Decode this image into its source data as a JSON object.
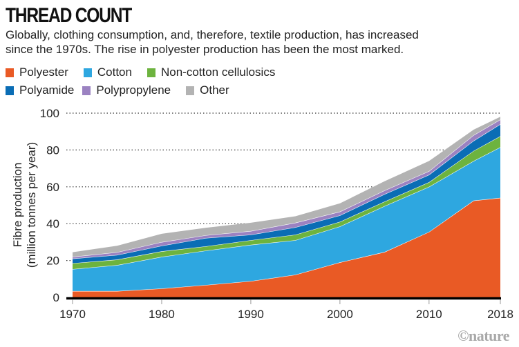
{
  "header": {
    "title": "THREAD COUNT",
    "subtitle_line1": "Globally, clothing consumption, and, therefore, textile production, has increased",
    "subtitle_line2": "since the 1970s. The rise in polyester production has been the most marked."
  },
  "credit": "©nature",
  "chart_data": {
    "type": "area",
    "stacked": true,
    "title": "THREAD COUNT",
    "xlabel": "",
    "ylabel": "Fibre production",
    "ylabel_sub": "(million tonnes per year)",
    "x": [
      1970,
      1975,
      1980,
      1985,
      1990,
      1995,
      2000,
      2005,
      2010,
      2015,
      2018
    ],
    "xlim": [
      1970,
      2018
    ],
    "ylim": [
      0,
      100
    ],
    "x_ticks": [
      "1970",
      "1980",
      "1990",
      "2000",
      "2010",
      "2018"
    ],
    "x_tick_values": [
      1970,
      1980,
      1990,
      2000,
      2010,
      2018
    ],
    "y_ticks": [
      "0",
      "20",
      "40",
      "60",
      "80",
      "100"
    ],
    "y_tick_values": [
      0,
      20,
      40,
      60,
      80,
      100
    ],
    "grid": "horizontal dotted",
    "legend_position": "top",
    "series": [
      {
        "name": "Polyester",
        "color": "#e95a25",
        "values": [
          3.4,
          3.4,
          4.8,
          6.7,
          8.8,
          12.3,
          19.0,
          24.6,
          35.5,
          52.5,
          54.0
        ]
      },
      {
        "name": "Cotton",
        "color": "#2ea7e0",
        "values": [
          11.9,
          14.1,
          17.2,
          18.7,
          19.7,
          18.7,
          19.5,
          24.9,
          24.5,
          21.5,
          27.5
        ]
      },
      {
        "name": "Non-cotton cellulosics",
        "color": "#6db33f",
        "values": [
          3.2,
          3.0,
          3.0,
          2.3,
          2.5,
          3.0,
          2.5,
          2.5,
          2.5,
          5.5,
          6.0
        ]
      },
      {
        "name": "Polyamide",
        "color": "#0a6db5",
        "values": [
          2.5,
          2.5,
          3.0,
          4.5,
          3.0,
          4.0,
          3.5,
          4.0,
          4.0,
          5.5,
          6.5
        ]
      },
      {
        "name": "Polypropylene",
        "color": "#9b82c1",
        "values": [
          1.0,
          1.5,
          2.0,
          1.5,
          2.0,
          2.5,
          2.0,
          2.0,
          2.0,
          3.0,
          2.5
        ]
      },
      {
        "name": "Other",
        "color": "#b3b3b3",
        "values": [
          2.5,
          3.5,
          4.5,
          4.1,
          4.5,
          3.5,
          4.5,
          5.0,
          5.5,
          3.0,
          1.5
        ]
      }
    ]
  }
}
